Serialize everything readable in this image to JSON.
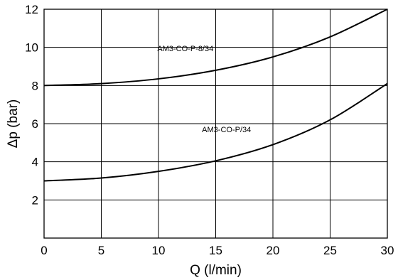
{
  "chart_data": {
    "type": "line",
    "title": "",
    "xlabel": "Q (l/min)",
    "ylabel": "Δp (bar)",
    "xlim": [
      0,
      30
    ],
    "ylim": [
      0,
      12
    ],
    "xticks": [
      0,
      5,
      10,
      15,
      20,
      25,
      30
    ],
    "yticks": [
      2,
      4,
      6,
      8,
      10,
      12
    ],
    "grid": true,
    "line_color": "#000000",
    "series": [
      {
        "name": "AM3-CO-P-8/34",
        "x": [
          0,
          5,
          10,
          15,
          20,
          25,
          30
        ],
        "y": [
          8.0,
          8.1,
          8.35,
          8.8,
          9.5,
          10.55,
          12.0
        ]
      },
      {
        "name": "AM3-CO-P/34",
        "x": [
          0,
          5,
          10,
          15,
          20,
          25,
          30
        ],
        "y": [
          3.0,
          3.15,
          3.5,
          4.05,
          4.9,
          6.2,
          8.1
        ]
      }
    ]
  }
}
